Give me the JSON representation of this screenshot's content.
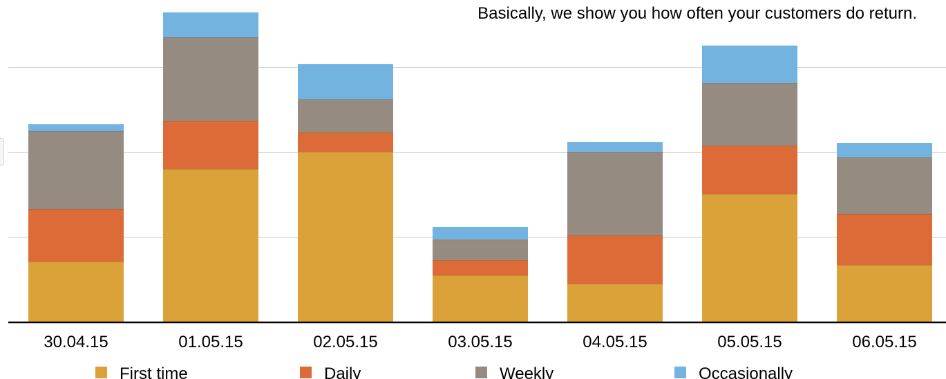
{
  "caption": "Basically, we show you how often your customers do return.",
  "chart_data": {
    "type": "bar",
    "stacked": true,
    "categories": [
      "30.04.15",
      "01.05.15",
      "02.05.15",
      "03.05.15",
      "04.05.15",
      "05.05.15",
      "06.05.15"
    ],
    "series": [
      {
        "name": "First time",
        "color": "#dba23a",
        "values": [
          88,
          222,
          247,
          68,
          56,
          186,
          83
        ]
      },
      {
        "name": "Daily",
        "color": "#dc6b37",
        "values": [
          76,
          70,
          28,
          22,
          70,
          70,
          74
        ]
      },
      {
        "name": "Weekly",
        "color": "#958b80",
        "values": [
          113,
          121,
          48,
          30,
          121,
          91,
          82
        ]
      },
      {
        "name": "Occasionally",
        "color": "#72b3df",
        "values": [
          10,
          36,
          51,
          18,
          14,
          54,
          21
        ]
      }
    ],
    "ylim": [
      0,
      450
    ],
    "y_gridlines": [
      123.5,
      246.5,
      369.5
    ],
    "grid": true,
    "legend_position": "bottom",
    "xlabel": "",
    "ylabel": ""
  }
}
